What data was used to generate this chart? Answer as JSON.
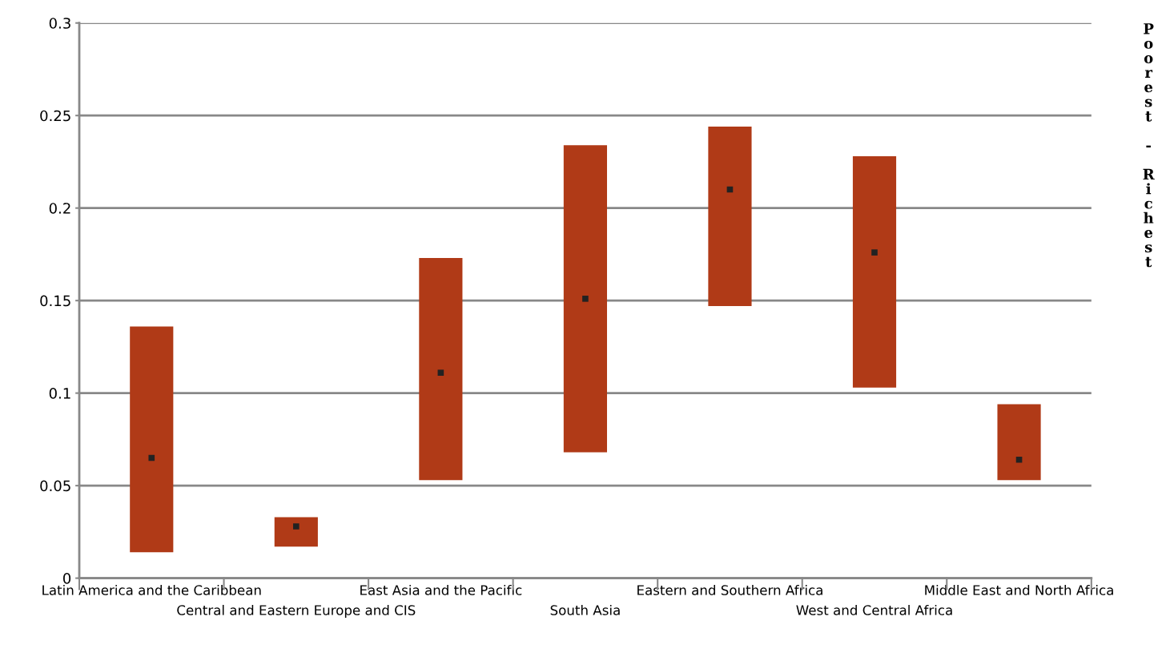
{
  "chart_data": {
    "type": "bar",
    "categories": [
      "Latin America and the Caribbean",
      "Central and Eastern Europe and CIS",
      "East Asia and the Pacific",
      "South Asia",
      "Eastern and Southern Africa",
      "West and Central Africa",
      "Middle East and North Africa"
    ],
    "series": [
      {
        "color": "#b03a17",
        "base": [
          0.014,
          0.017,
          0.053,
          0.068,
          0.147,
          0.103,
          0.053
        ],
        "values": [
          0.122,
          0.016,
          0.12,
          0.166,
          0.097,
          0.125,
          0.041
        ]
      },
      {
        "type": "scatter",
        "color": "#222222",
        "marker": "square",
        "x": [
          "Latin America and the Caribbean",
          "Central and Eastern Europe and CIS",
          "East Asia and the Pacific",
          "South Asia",
          "Eastern and Southern Africa",
          "West and Central Africa",
          "Middle East and North Africa"
        ],
        "values": [
          0.065,
          0.028,
          0.111,
          0.151,
          0.21,
          0.176,
          0.064
        ]
      }
    ],
    "ylim": [
      0,
      0.3
    ],
    "yticks": [
      0,
      0.05,
      0.1,
      0.15,
      0.2,
      0.25,
      0.3
    ],
    "grid": "y",
    "annotations": [
      "Poorest - Richest"
    ]
  }
}
